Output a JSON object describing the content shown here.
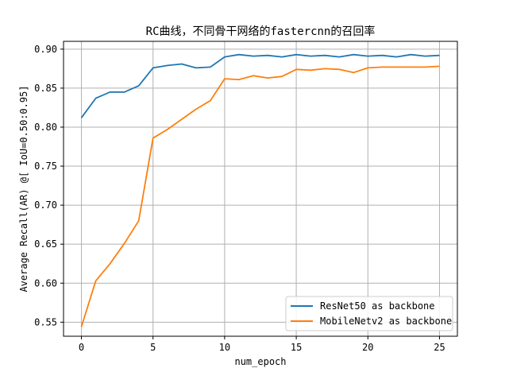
{
  "chart_data": {
    "type": "line",
    "title": "RC曲线，不同骨干网络的fastercnn的召回率",
    "xlabel": "num_epoch",
    "ylabel": "Average Recall(AR) @[ IoU=0.50:0.95]",
    "xlim": [
      -1.25,
      26.25
    ],
    "ylim": [
      0.532,
      0.91
    ],
    "xticks": [
      0,
      5,
      10,
      15,
      20,
      25
    ],
    "yticks": [
      0.55,
      0.6,
      0.65,
      0.7,
      0.75,
      0.8,
      0.85,
      0.9
    ],
    "ytick_labels": [
      "0.55",
      "0.60",
      "0.65",
      "0.70",
      "0.75",
      "0.80",
      "0.85",
      "0.90"
    ],
    "grid": true,
    "legend_position": "lower-right",
    "x": [
      0,
      1,
      2,
      3,
      4,
      5,
      6,
      7,
      8,
      9,
      10,
      11,
      12,
      13,
      14,
      15,
      16,
      17,
      18,
      19,
      20,
      21,
      22,
      23,
      24,
      25
    ],
    "series": [
      {
        "name": "ResNet50 as backbone",
        "color": "#1f77b4",
        "values": [
          0.812,
          0.837,
          0.845,
          0.845,
          0.853,
          0.876,
          0.879,
          0.881,
          0.876,
          0.877,
          0.89,
          0.893,
          0.891,
          0.892,
          0.89,
          0.893,
          0.891,
          0.892,
          0.89,
          0.893,
          0.891,
          0.892,
          0.89,
          0.893,
          0.891,
          0.892
        ]
      },
      {
        "name": "MobileNetv2 as backbone",
        "color": "#ff7f0e",
        "values": [
          0.544,
          0.603,
          0.625,
          0.651,
          0.68,
          0.786,
          0.797,
          0.81,
          0.823,
          0.834,
          0.862,
          0.861,
          0.866,
          0.863,
          0.865,
          0.874,
          0.873,
          0.875,
          0.874,
          0.87,
          0.876,
          0.877,
          0.877,
          0.877,
          0.877,
          0.878
        ]
      }
    ]
  }
}
